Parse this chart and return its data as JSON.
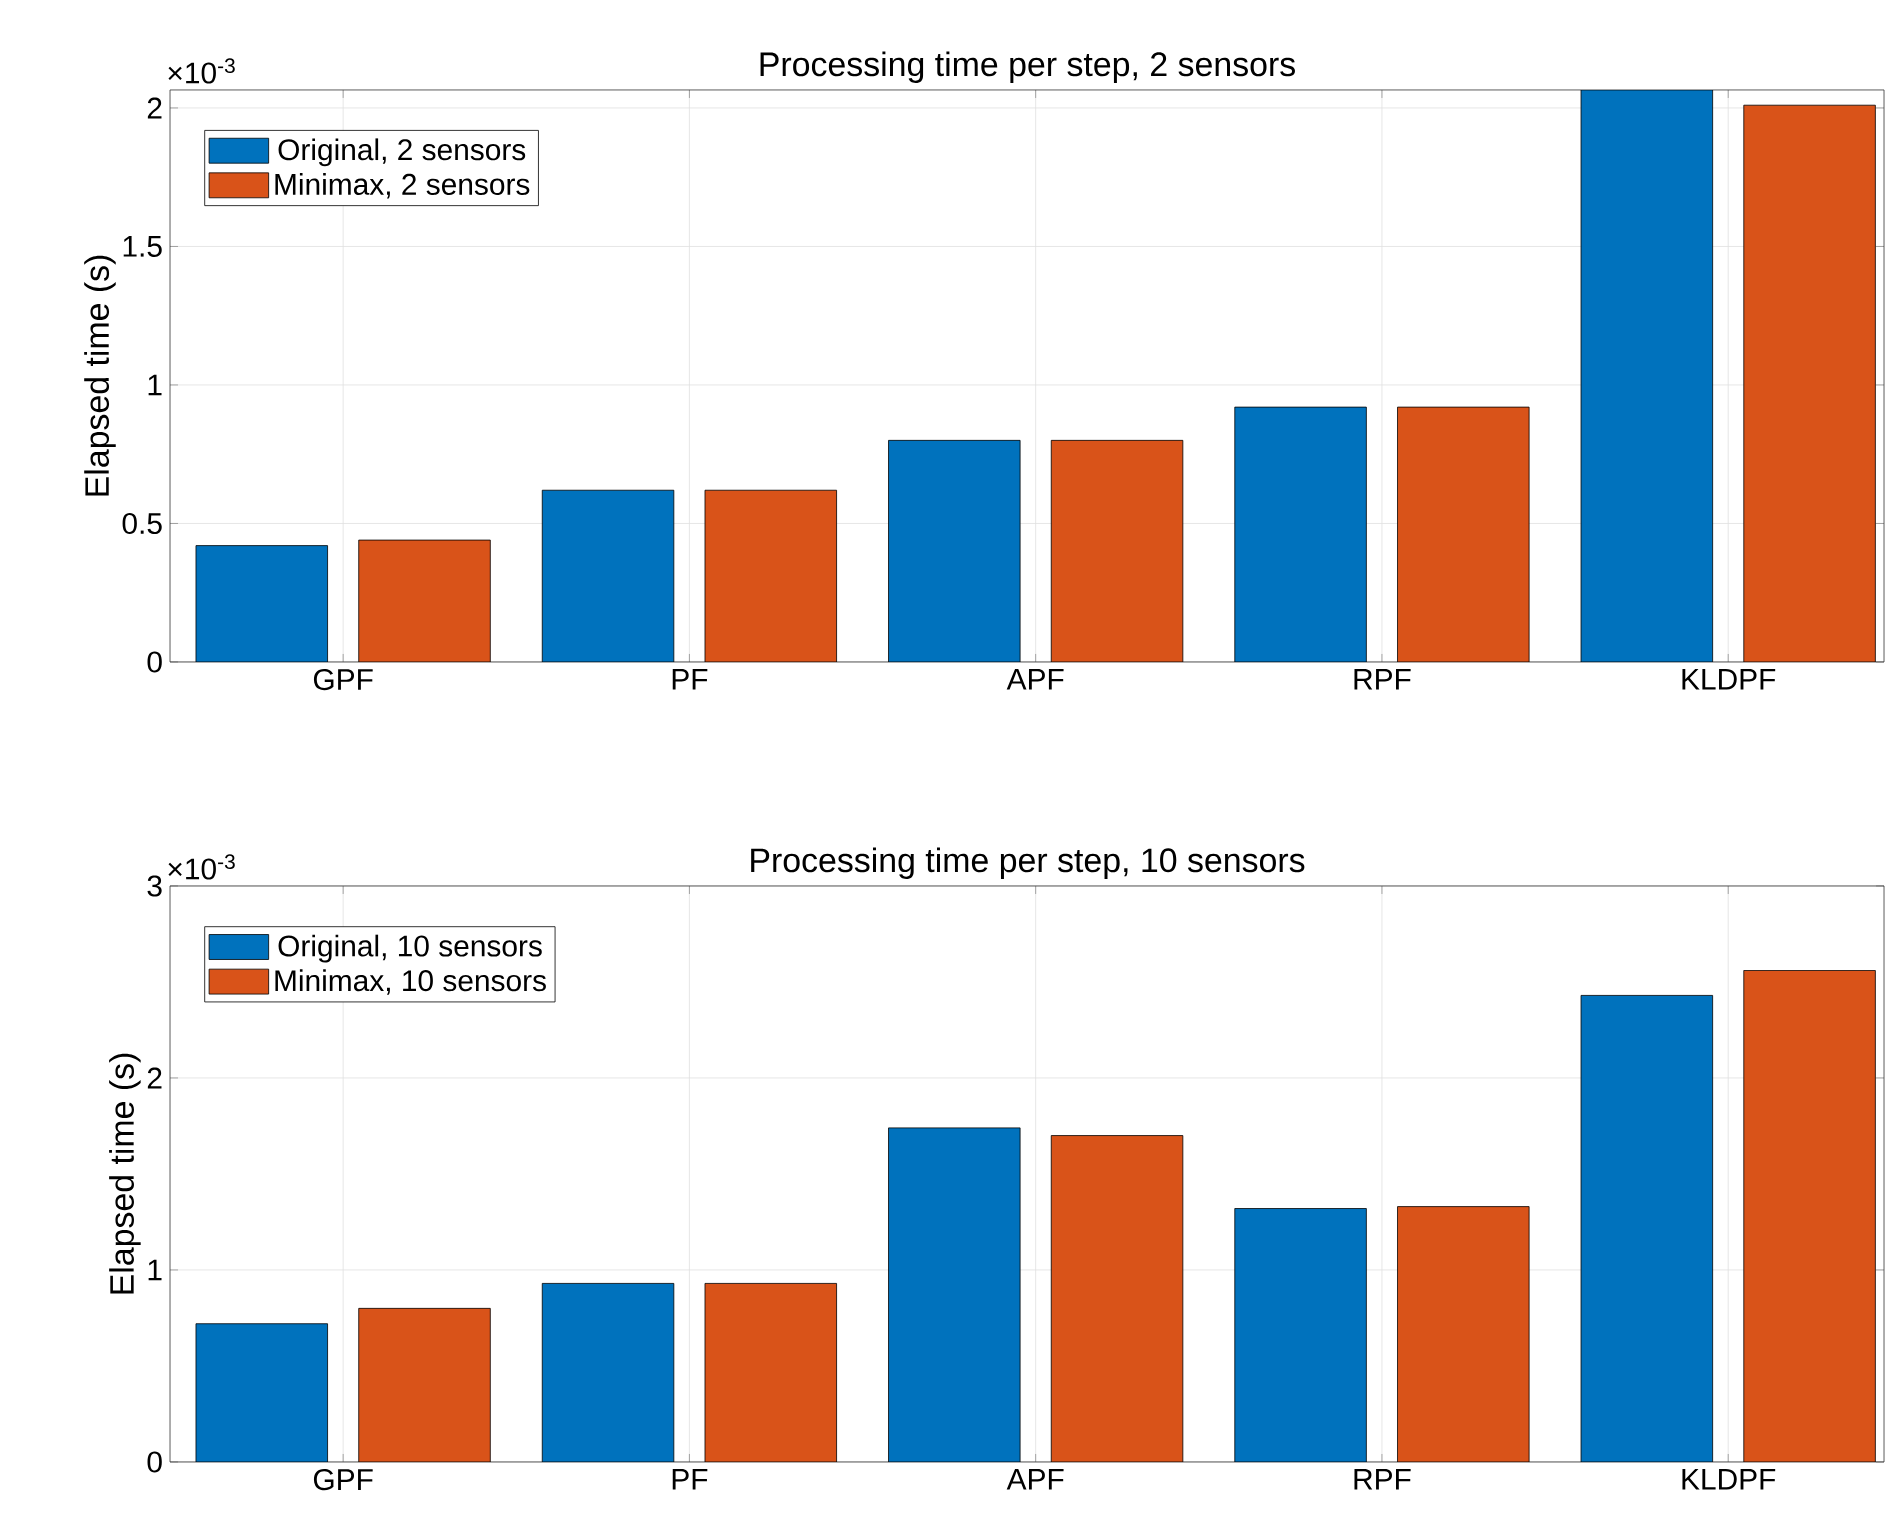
{
  "chart_data": [
    {
      "type": "bar",
      "title": "Processing time per step, 2 sensors",
      "ylabel": "Elapsed time (s)",
      "annotations": [
        "×10$^{-3}$"
      ],
      "categories": [
        "GPF",
        "PF",
        "APF",
        "RPF",
        "KLDPF"
      ],
      "series": [
        {
          "name": "Original, 2 sensors",
          "color": "#0072bd",
          "values": [
            0.42,
            0.62,
            0.8,
            0.92,
            2.065
          ]
        },
        {
          "name": "Minimax, 2 sensors",
          "color": "#d95319",
          "values": [
            0.44,
            0.62,
            0.8,
            0.92,
            2.01
          ]
        }
      ],
      "ylim": [
        0,
        2.065
      ],
      "yticks": [
        0,
        0.5,
        1,
        1.5,
        2
      ],
      "grid": true,
      "legend": "top left"
    },
    {
      "type": "bar",
      "title": "Processing time per step, 10 sensors",
      "ylabel": "Elapsed time (s)",
      "annotations": [
        "×10$^{-3}$"
      ],
      "categories": [
        "GPF",
        "PF",
        "APF",
        "RPF",
        "KLDPF"
      ],
      "series": [
        {
          "name": "Original, 10 sensors",
          "color": "#0072bd",
          "values": [
            0.72,
            0.93,
            1.74,
            1.32,
            2.43
          ]
        },
        {
          "name": "Minimax, 10 sensors",
          "color": "#d95319",
          "values": [
            0.8,
            0.93,
            1.7,
            1.33,
            2.56
          ]
        }
      ],
      "ylim": [
        0,
        3
      ],
      "yticks": [
        0,
        1,
        2,
        3
      ],
      "grid": true,
      "legend": "top left"
    }
  ]
}
